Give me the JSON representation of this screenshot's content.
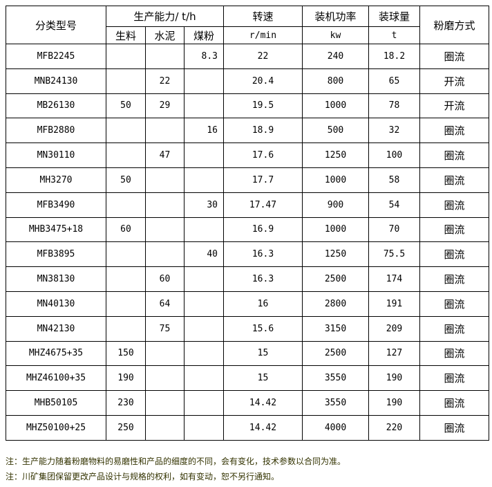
{
  "header": {
    "model": "分类型号",
    "capacity": "生产能力/ t/h",
    "raw": "生料",
    "cement": "水泥",
    "coal": "煤粉",
    "speed": "转速",
    "speed_unit": "r/min",
    "power": "装机功率",
    "power_unit": "kw",
    "ball": "装球量",
    "ball_unit": "t",
    "mode": "粉磨方式"
  },
  "rows": [
    {
      "model": "MFB2245",
      "raw": "",
      "cement": "",
      "coal": "8.3",
      "speed": "22",
      "power": "240",
      "ball": "18.2",
      "mode": "圈流"
    },
    {
      "model": "MNB24130",
      "raw": "",
      "cement": "22",
      "coal": "",
      "speed": "20.4",
      "power": "800",
      "ball": "65",
      "mode": "开流"
    },
    {
      "model": "MB26130",
      "raw": "50",
      "cement": "29",
      "coal": "",
      "speed": "19.5",
      "power": "1000",
      "ball": "78",
      "mode": "开流"
    },
    {
      "model": "MFB2880",
      "raw": "",
      "cement": "",
      "coal": "16",
      "speed": "18.9",
      "power": "500",
      "ball": "32",
      "mode": "圈流"
    },
    {
      "model": "MN30110",
      "raw": "",
      "cement": "47",
      "coal": "",
      "speed": "17.6",
      "power": "1250",
      "ball": "100",
      "mode": "圈流"
    },
    {
      "model": "MH3270",
      "raw": "50",
      "cement": "",
      "coal": "",
      "speed": "17.7",
      "power": "1000",
      "ball": "58",
      "mode": "圈流"
    },
    {
      "model": "MFB3490",
      "raw": "",
      "cement": "",
      "coal": "30",
      "speed": "17.47",
      "power": "900",
      "ball": "54",
      "mode": "圈流"
    },
    {
      "model": "MHB3475+18",
      "raw": "60",
      "cement": "",
      "coal": "",
      "speed": "16.9",
      "power": "1000",
      "ball": "70",
      "mode": "圈流"
    },
    {
      "model": "MFB3895",
      "raw": "",
      "cement": "",
      "coal": "40",
      "speed": "16.3",
      "power": "1250",
      "ball": "75.5",
      "mode": "圈流"
    },
    {
      "model": "MN38130",
      "raw": "",
      "cement": "60",
      "coal": "",
      "speed": "16.3",
      "power": "2500",
      "ball": "174",
      "mode": "圈流"
    },
    {
      "model": "MN40130",
      "raw": "",
      "cement": "64",
      "coal": "",
      "speed": "16",
      "power": "2800",
      "ball": "191",
      "mode": "圈流"
    },
    {
      "model": "MN42130",
      "raw": "",
      "cement": "75",
      "coal": "",
      "speed": "15.6",
      "power": "3150",
      "ball": "209",
      "mode": "圈流"
    },
    {
      "model": "MHZ4675+35",
      "raw": "150",
      "cement": "",
      "coal": "",
      "speed": "15",
      "power": "2500",
      "ball": "127",
      "mode": "圈流"
    },
    {
      "model": "MHZ46100+35",
      "raw": "190",
      "cement": "",
      "coal": "",
      "speed": "15",
      "power": "3550",
      "ball": "190",
      "mode": "圈流"
    },
    {
      "model": "MHB50105",
      "raw": "230",
      "cement": "",
      "coal": "",
      "speed": "14.42",
      "power": "3550",
      "ball": "190",
      "mode": "圈流"
    },
    {
      "model": "MHZ50100+25",
      "raw": "250",
      "cement": "",
      "coal": "",
      "speed": "14.42",
      "power": "4000",
      "ball": "220",
      "mode": "圈流"
    }
  ],
  "notes": [
    "注：生产能力随着粉磨物料的易磨性和产品的细度的不同，会有变化，技术参数以合同为准。",
    "注：川矿集团保留更改产品设计与规格的权利，如有变动，恕不另行通知。"
  ]
}
